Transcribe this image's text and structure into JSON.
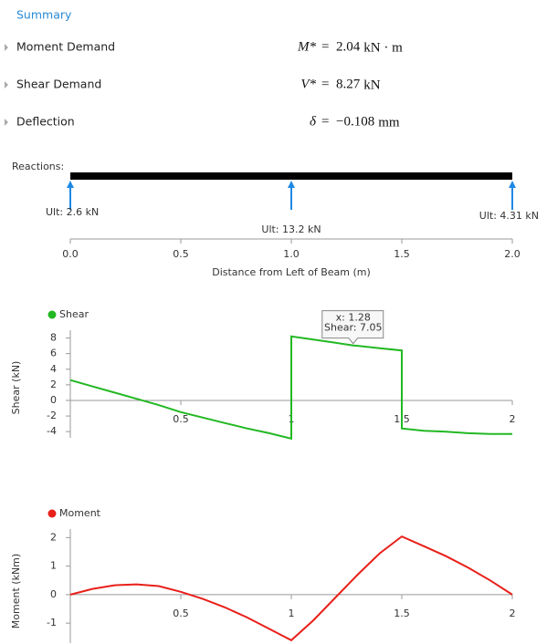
{
  "summary": {
    "title": "Summary",
    "rows": [
      {
        "label": "Moment Demand",
        "symbol": "M*",
        "equals": "=",
        "value": "2.04",
        "unit": "kN · m"
      },
      {
        "label": "Shear Demand",
        "symbol": "V*",
        "equals": "=",
        "value": "8.27",
        "unit": "kN"
      },
      {
        "label": "Deflection",
        "symbol": "δ",
        "equals": "=",
        "value": "−0.108",
        "unit": "mm"
      }
    ]
  },
  "reactions": {
    "label": "Reactions:",
    "xlim": [
      0,
      2
    ],
    "xticks": [
      {
        "value": 0,
        "label": "0.0"
      },
      {
        "value": 0.5,
        "label": "0.5"
      },
      {
        "value": 1,
        "label": "1.0"
      },
      {
        "value": 1.5,
        "label": "1.5"
      },
      {
        "value": 2,
        "label": "2.0"
      }
    ],
    "x_label": "Distance from Left of Beam (m)",
    "supports": [
      {
        "x": 0,
        "label": "Ult: 2.6 kN"
      },
      {
        "x": 1,
        "label": "Ult: 13.2 kN"
      },
      {
        "x": 2,
        "label": "Ult: 4.31 kN"
      }
    ]
  },
  "chart_data": [
    {
      "type": "line",
      "ylabel": "Shear (kN)",
      "x": [
        0,
        0.1,
        0.2,
        0.3,
        0.4,
        0.5,
        0.6,
        0.7,
        0.8,
        0.9,
        1,
        1,
        1.1,
        1.2,
        1.28,
        1.3,
        1.4,
        1.5,
        1.5,
        1.6,
        1.7,
        1.8,
        1.9,
        2
      ],
      "series": [
        {
          "name": "Shear",
          "color": "#22b822",
          "values": [
            2.6,
            1.8,
            1.0,
            0.2,
            -0.6,
            -1.5,
            -2.2,
            -2.9,
            -3.6,
            -4.2,
            -4.9,
            8.2,
            7.8,
            7.4,
            7.05,
            7.0,
            6.7,
            6.4,
            -3.6,
            -3.9,
            -4.0,
            -4.2,
            -4.3,
            -4.3
          ]
        }
      ],
      "xlim": [
        0,
        2
      ],
      "ylim": [
        -4.8,
        9
      ],
      "xticks": [
        0.5,
        1,
        1.5,
        2
      ],
      "yticks": [
        8,
        6,
        4,
        2,
        0,
        -2,
        -4
      ],
      "tooltip": {
        "x": 1.28,
        "y": 7.05,
        "lines": [
          "x: 1.28",
          "Shear: 7.05"
        ]
      }
    },
    {
      "type": "line",
      "ylabel": "Moment (kNm)",
      "x": [
        0,
        0.1,
        0.2,
        0.3,
        0.4,
        0.5,
        0.6,
        0.7,
        0.8,
        0.9,
        1,
        1.1,
        1.2,
        1.3,
        1.4,
        1.5,
        1.6,
        1.7,
        1.8,
        1.9,
        2
      ],
      "series": [
        {
          "name": "Moment",
          "color": "#e8201a",
          "values": [
            0,
            0.2,
            0.33,
            0.36,
            0.3,
            0.1,
            -0.15,
            -0.45,
            -0.8,
            -1.2,
            -1.6,
            -0.9,
            -0.1,
            0.7,
            1.45,
            2.04,
            1.7,
            1.35,
            0.95,
            0.5,
            0
          ]
        }
      ],
      "xlim": [
        0,
        2
      ],
      "ylim": [
        -1.7,
        2.3
      ],
      "xticks": [
        0.5,
        1,
        1.5,
        2
      ],
      "yticks": [
        2,
        1,
        0,
        -1
      ]
    }
  ]
}
